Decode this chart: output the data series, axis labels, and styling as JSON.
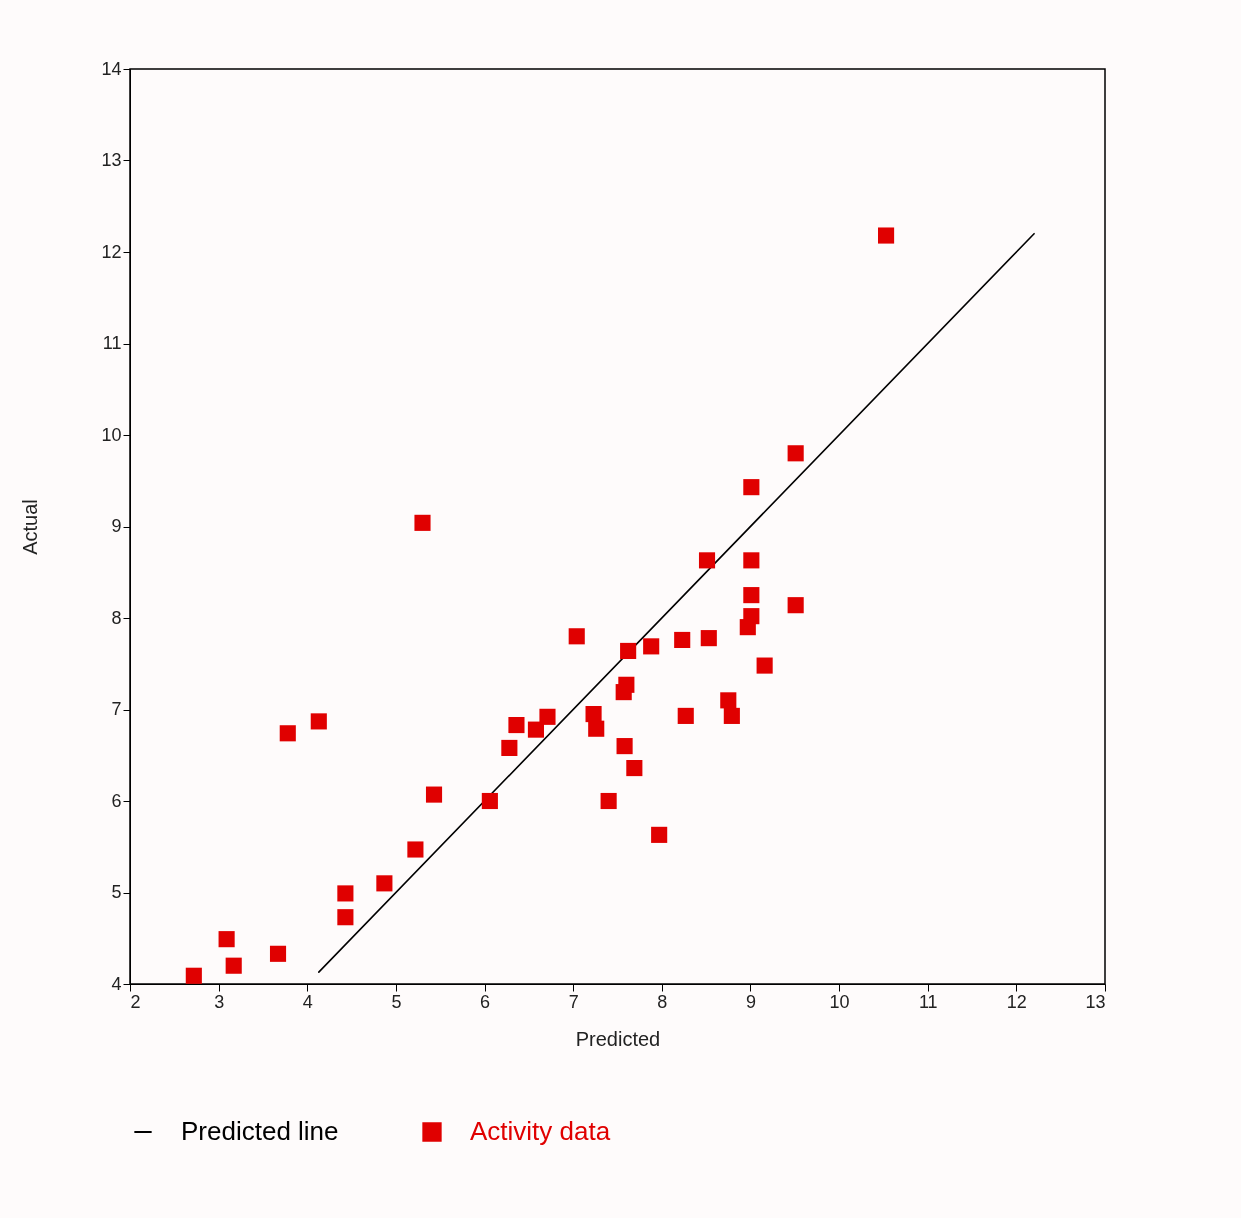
{
  "chart_data": {
    "type": "scatter",
    "xlabel": "Predicted",
    "ylabel": "Actual",
    "xlim": [
      2,
      13
    ],
    "ylim": [
      4,
      14
    ],
    "xticks": [
      2,
      3,
      4,
      5,
      6,
      7,
      8,
      9,
      10,
      11,
      12,
      13
    ],
    "yticks": [
      4,
      5,
      6,
      7,
      8,
      9,
      10,
      11,
      12,
      13,
      14
    ],
    "grid": false,
    "legend": "bottom",
    "series": [
      {
        "name": "Predicted line",
        "type": "line",
        "color": "#000000",
        "marker": "none",
        "x": [
          4.13,
          12.2
        ],
        "values": [
          4.13,
          12.2
        ]
      },
      {
        "name": "Activity data",
        "color": "#e00000",
        "marker": "square",
        "x": [
          2.72,
          3.09,
          3.17,
          3.67,
          3.78,
          4.13,
          4.43,
          4.43,
          4.87,
          5.22,
          5.3,
          5.43,
          6.06,
          6.28,
          6.36,
          6.58,
          6.71,
          7.04,
          7.23,
          7.26,
          7.4,
          7.58,
          7.57,
          7.6,
          7.62,
          7.69,
          7.88,
          7.97,
          8.23,
          8.27,
          8.53,
          8.51,
          8.75,
          8.79,
          8.97,
          9.01,
          9.01,
          9.01,
          9.01,
          9.16,
          9.51,
          9.51,
          10.53
        ],
        "values": [
          4.09,
          4.49,
          4.2,
          4.33,
          6.74,
          6.87,
          4.99,
          4.73,
          5.1,
          5.47,
          9.04,
          6.07,
          6.0,
          6.58,
          6.83,
          6.78,
          6.92,
          7.8,
          6.95,
          6.79,
          6.0,
          6.6,
          7.19,
          7.27,
          7.64,
          6.36,
          7.69,
          5.63,
          7.76,
          6.93,
          7.78,
          8.63,
          7.1,
          6.93,
          7.9,
          8.02,
          8.25,
          8.63,
          9.43,
          7.48,
          8.14,
          9.8,
          12.18
        ]
      }
    ]
  }
}
